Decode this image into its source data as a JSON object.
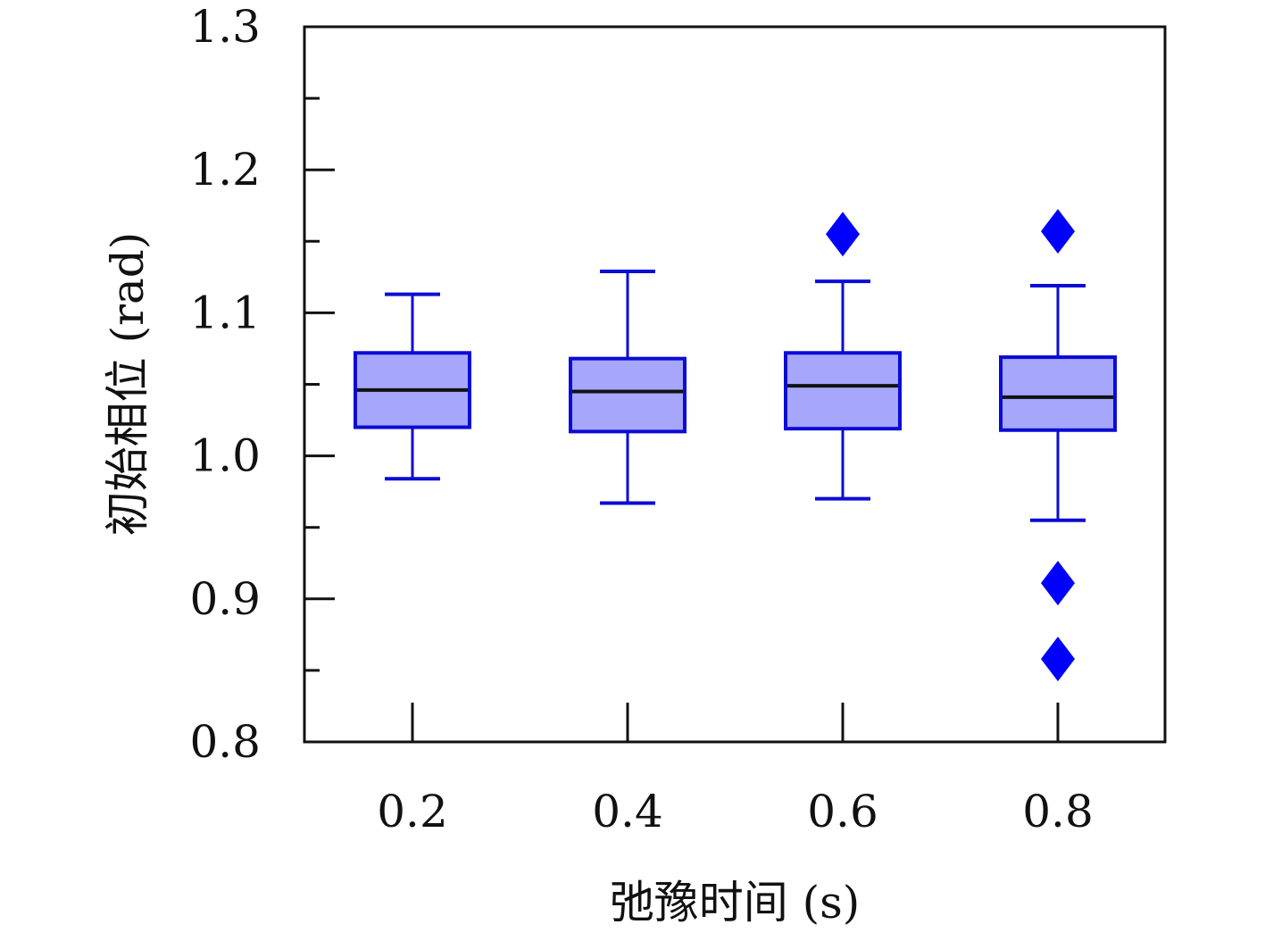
{
  "chart_data": {
    "type": "box",
    "xlabel": "弛豫时间 (s)",
    "ylabel": "初始相位 (rad)",
    "ylim": [
      0.8,
      1.3
    ],
    "yticks": [
      0.8,
      0.9,
      1.0,
      1.1,
      1.2,
      1.3
    ],
    "ytick_labels": [
      "0.8",
      "0.9",
      "1.0",
      "1.1",
      "1.2",
      "1.3"
    ],
    "categories": [
      "0.2",
      "0.4",
      "0.6",
      "0.8"
    ],
    "boxes": [
      {
        "category": "0.2",
        "whisker_low": 0.984,
        "q1": 1.02,
        "median": 1.046,
        "q3": 1.072,
        "whisker_high": 1.113,
        "outliers": []
      },
      {
        "category": "0.4",
        "whisker_low": 0.967,
        "q1": 1.017,
        "median": 1.045,
        "q3": 1.068,
        "whisker_high": 1.129,
        "outliers": []
      },
      {
        "category": "0.6",
        "whisker_low": 0.97,
        "q1": 1.019,
        "median": 1.049,
        "q3": 1.072,
        "whisker_high": 1.122,
        "outliers": [
          1.155
        ]
      },
      {
        "category": "0.8",
        "whisker_low": 0.955,
        "q1": 1.018,
        "median": 1.041,
        "q3": 1.069,
        "whisker_high": 1.119,
        "outliers": [
          1.157,
          0.911,
          0.858
        ]
      }
    ],
    "colors": {
      "box_fill": "#a6a6fb",
      "box_edge": "#0b0bd6",
      "median": "#111111",
      "outlier": "#0000ff",
      "axis": "#111111"
    },
    "grid": false,
    "legend": "none"
  }
}
